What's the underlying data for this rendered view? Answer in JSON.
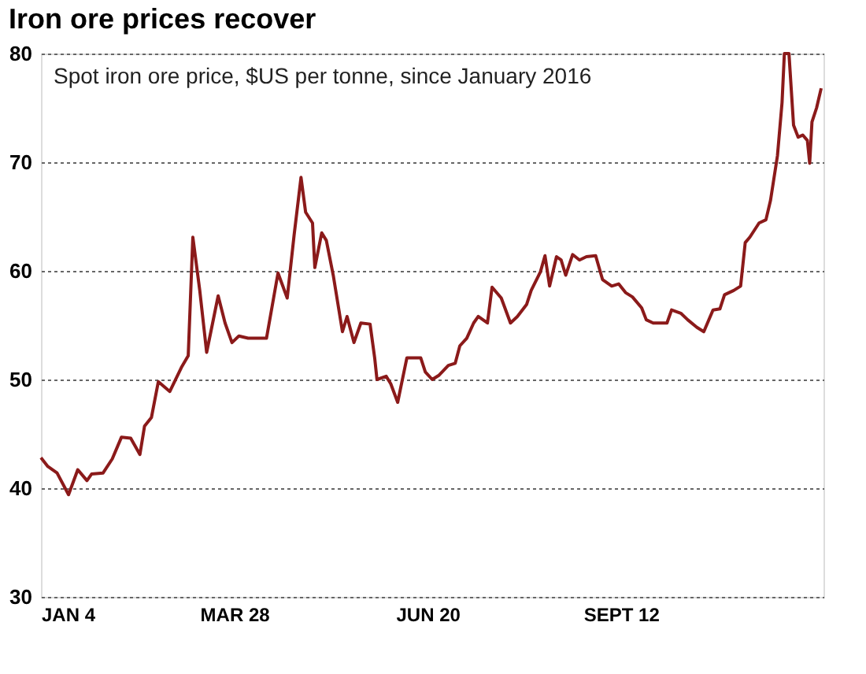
{
  "chart_data": {
    "type": "line",
    "title": "Iron ore prices recover",
    "subtitle": "Spot iron ore price, $US per tonne, since January 2016",
    "x": [
      "2016-01-04",
      "2016-01-07",
      "2016-01-11",
      "2016-01-16",
      "2016-01-20",
      "2016-01-24",
      "2016-01-26",
      "2016-01-31",
      "2016-02-04",
      "2016-02-08",
      "2016-02-12",
      "2016-02-16",
      "2016-02-18",
      "2016-02-21",
      "2016-02-24",
      "2016-02-29",
      "2016-03-05",
      "2016-03-08",
      "2016-03-10",
      "2016-03-13",
      "2016-03-16",
      "2016-03-21",
      "2016-03-24",
      "2016-03-27",
      "2016-03-30",
      "2016-04-03",
      "2016-04-11",
      "2016-04-16",
      "2016-04-20",
      "2016-04-23",
      "2016-04-26",
      "2016-04-28",
      "2016-05-01",
      "2016-05-02",
      "2016-05-05",
      "2016-05-07",
      "2016-05-10",
      "2016-05-14",
      "2016-05-16",
      "2016-05-19",
      "2016-05-22",
      "2016-05-26",
      "2016-05-28",
      "2016-05-29",
      "2016-06-02",
      "2016-06-04",
      "2016-06-07",
      "2016-06-11",
      "2016-06-17",
      "2016-06-19",
      "2016-06-22",
      "2016-06-25",
      "2016-06-29",
      "2016-07-02",
      "2016-07-04",
      "2016-07-07",
      "2016-07-10",
      "2016-07-12",
      "2016-07-16",
      "2016-07-18",
      "2016-07-22",
      "2016-07-26",
      "2016-07-29",
      "2016-08-02",
      "2016-08-04",
      "2016-08-08",
      "2016-08-10",
      "2016-08-12",
      "2016-08-15",
      "2016-08-17",
      "2016-08-19",
      "2016-08-22",
      "2016-08-25",
      "2016-08-28",
      "2016-09-01",
      "2016-09-04",
      "2016-09-08",
      "2016-09-11",
      "2016-09-14",
      "2016-09-17",
      "2016-09-21",
      "2016-09-23",
      "2016-09-26",
      "2016-10-02",
      "2016-10-04",
      "2016-10-08",
      "2016-10-11",
      "2016-10-15",
      "2016-10-18",
      "2016-10-22",
      "2016-10-25",
      "2016-10-27",
      "2016-10-31",
      "2016-11-03",
      "2016-11-05",
      "2016-11-07",
      "2016-11-11",
      "2016-11-14",
      "2016-11-16",
      "2016-11-19",
      "2016-11-21",
      "2016-11-22",
      "2016-11-24",
      "2016-11-26",
      "2016-11-28",
      "2016-11-30",
      "2016-12-02",
      "2016-12-03",
      "2016-12-04",
      "2016-12-06",
      "2016-12-08"
    ],
    "series": [
      {
        "color": "#8b1a1a",
        "values": [
          42.8,
          42.0,
          41.4,
          39.4,
          41.7,
          40.7,
          41.3,
          41.4,
          42.7,
          44.7,
          44.6,
          43.1,
          45.7,
          46.5,
          49.8,
          48.9,
          51.1,
          52.2,
          63.1,
          58.2,
          52.5,
          57.7,
          55.2,
          53.4,
          54.0,
          53.8,
          53.8,
          59.8,
          57.5,
          63.3,
          68.6,
          65.4,
          64.4,
          60.3,
          63.5,
          62.8,
          59.6,
          54.4,
          55.8,
          53.4,
          55.2,
          55.1,
          52.0,
          50.0,
          50.3,
          49.6,
          47.9,
          52.0,
          52.0,
          50.7,
          50.0,
          50.4,
          51.3,
          51.5,
          53.1,
          53.8,
          55.2,
          55.8,
          55.2,
          58.5,
          57.5,
          55.2,
          55.8,
          56.9,
          58.2,
          59.9,
          61.4,
          58.6,
          61.3,
          61.0,
          59.6,
          61.5,
          61.0,
          61.3,
          61.4,
          59.2,
          58.6,
          58.8,
          58.0,
          57.6,
          56.6,
          55.5,
          55.2,
          55.2,
          56.4,
          56.1,
          55.5,
          54.8,
          54.4,
          56.4,
          56.5,
          57.8,
          58.2,
          58.6,
          62.6,
          63.1,
          64.4,
          64.7,
          66.5,
          70.6,
          75.5,
          80,
          80,
          73.4,
          72.3,
          72.5,
          72.0,
          69.9,
          73.7,
          75.0,
          76.8
        ]
      }
    ],
    "xlim": [
      "2016-01-04",
      "2016-12-09"
    ],
    "xticks": [
      {
        "value": "2016-01-04",
        "label": "JAN 4"
      },
      {
        "value": "2016-03-28",
        "label": "MAR 28"
      },
      {
        "value": "2016-06-20",
        "label": "JUN 20"
      },
      {
        "value": "2016-09-12",
        "label": "SEPT 12"
      }
    ],
    "ylim": [
      30,
      80
    ],
    "yticks": [
      30,
      40,
      50,
      60,
      70,
      80
    ],
    "grid": "y",
    "line_style": "solid",
    "marker": "none"
  }
}
